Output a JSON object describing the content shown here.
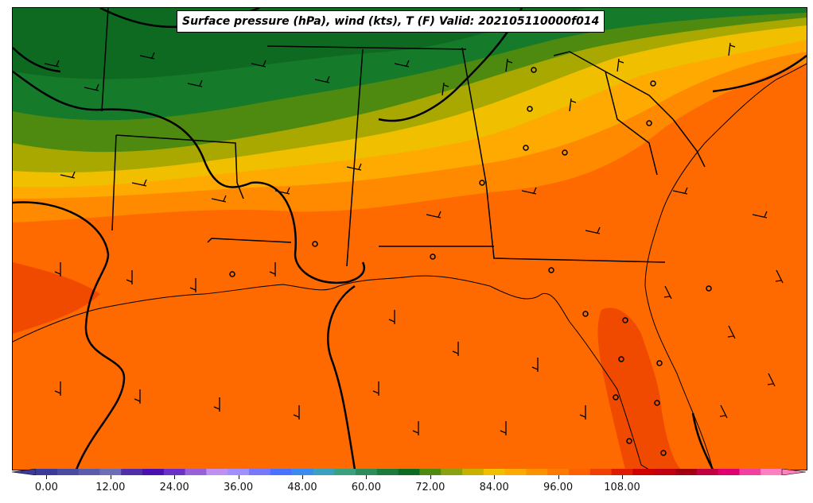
{
  "title": "Surface pressure (hPa), wind (kts), T (F) Valid: 202105110000f014",
  "colorbar": {
    "tick_labels": [
      "0.00",
      "12.00",
      "24.00",
      "36.00",
      "48.00",
      "60.00",
      "72.00",
      "84.00",
      "96.00",
      "108.00"
    ],
    "colors": [
      "#3a3a9a",
      "#4a4aa0",
      "#5c5caa",
      "#6e6eb4",
      "#5030a8",
      "#4a10b0",
      "#6a30c8",
      "#9a60d8",
      "#c090f0",
      "#a090ff",
      "#7878ff",
      "#4c70ff",
      "#3a8af0",
      "#3aa0c0",
      "#3aa080",
      "#2e8c5a",
      "#1e7a3c",
      "#0e6a20",
      "#4e8a10",
      "#8aa010",
      "#c8b000",
      "#f0c000",
      "#ffaa00",
      "#ff9200",
      "#ff7a00",
      "#ff6000",
      "#f04000",
      "#e01c00",
      "#d00000",
      "#c00010",
      "#a00010",
      "#c00040",
      "#e00070",
      "#f040a0",
      "#ff80c0"
    ]
  }
}
